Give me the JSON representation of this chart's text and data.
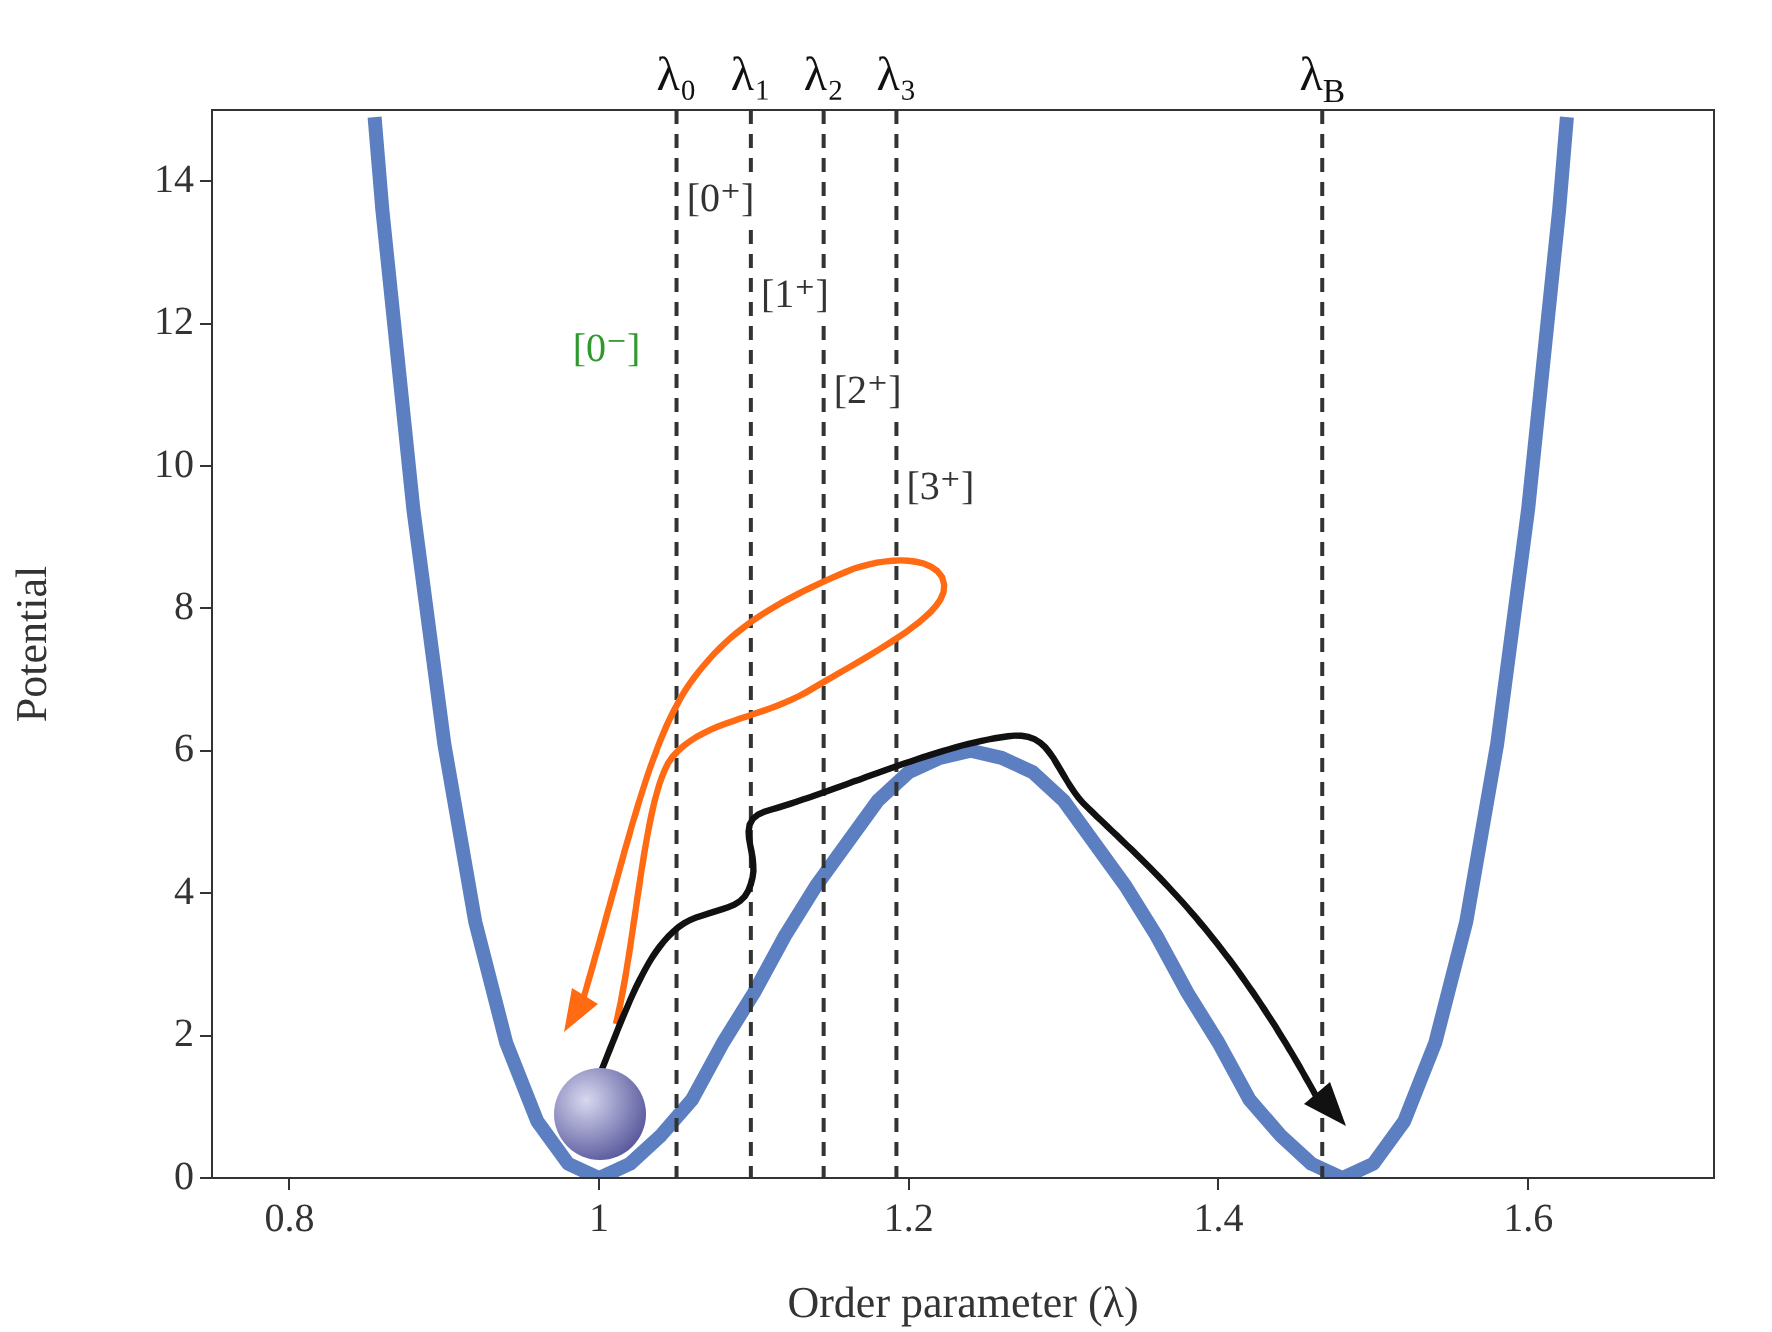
{
  "chart_data": {
    "type": "line",
    "xlabel": "Order parameter (λ)",
    "ylabel": "Potential",
    "xlim": [
      0.75,
      1.72
    ],
    "xticks": [
      0.8,
      1.0,
      1.2,
      1.4,
      1.6
    ],
    "ylim": [
      0,
      15
    ],
    "yticks": [
      0,
      2,
      4,
      6,
      8,
      10,
      12,
      14
    ],
    "grid": false,
    "legend": false,
    "marker": "none",
    "line_style": "solid",
    "x": [
      0.855,
      0.86,
      0.88,
      0.9,
      0.92,
      0.94,
      0.96,
      0.98,
      1.0,
      1.02,
      1.04,
      1.06,
      1.08,
      1.1,
      1.12,
      1.14,
      1.16,
      1.18,
      1.2,
      1.22,
      1.24,
      1.26,
      1.28,
      1.3,
      1.32,
      1.34,
      1.36,
      1.38,
      1.4,
      1.42,
      1.44,
      1.46,
      1.48,
      1.5,
      1.52,
      1.54,
      1.56,
      1.58,
      1.6,
      1.62,
      1.625
    ],
    "series": [
      {
        "color": "#5b7fc1",
        "values": [
          14.9,
          13.6,
          9.4,
          6.1,
          3.6,
          1.9,
          0.8,
          0.2,
          0,
          0.2,
          0.6,
          1.1,
          1.9,
          2.6,
          3.4,
          4.1,
          4.7,
          5.3,
          5.7,
          5.9,
          6.0,
          5.9,
          5.7,
          5.3,
          4.7,
          4.1,
          3.4,
          2.6,
          1.9,
          1.1,
          0.6,
          0.2,
          0,
          0.2,
          0.8,
          1.9,
          3.6,
          6.1,
          9.4,
          13.6,
          14.9
        ]
      }
    ],
    "ref_lines": [
      {
        "axis": "x",
        "value": 1.05,
        "label": "λ₀",
        "color": "#333333",
        "line_style": "dashed"
      },
      {
        "axis": "x",
        "value": 1.098,
        "label": "λ₁",
        "color": "#333333",
        "line_style": "dashed"
      },
      {
        "axis": "x",
        "value": 1.145,
        "label": "λ₂",
        "color": "#333333",
        "line_style": "dashed"
      },
      {
        "axis": "x",
        "value": 1.192,
        "label": "λ₃",
        "color": "#333333",
        "line_style": "dashed"
      },
      {
        "axis": "x",
        "value": 1.467,
        "label": "λ$_{B}$",
        "color": "#333333",
        "line_style": "dashed"
      }
    ],
    "annotations": [
      "[0⁺]",
      "[1⁺]",
      "[2⁺]",
      "[3⁺]",
      "[0⁻]"
    ]
  }
}
